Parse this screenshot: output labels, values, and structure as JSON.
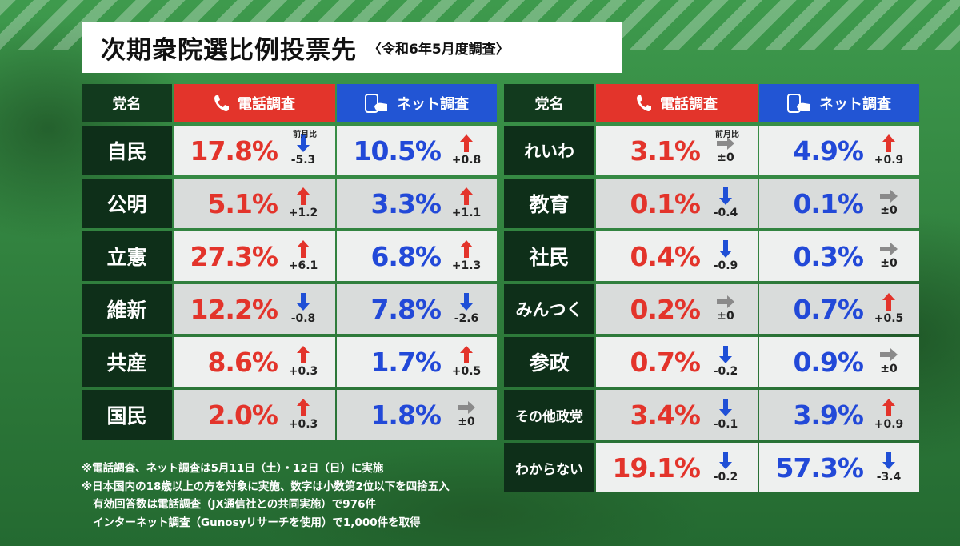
{
  "title": "次期衆院選比例投票先",
  "subtitle": "〈令和6年5月度調査〉",
  "headers": {
    "party": "党名",
    "phone": "電話調査",
    "net": "ネット調査",
    "prev": "前月比"
  },
  "colors": {
    "phone": "#e3342b",
    "net": "#2255d4",
    "party_bg": "#0e2f19",
    "up": "#e3342b",
    "down": "#1f4fd6",
    "flat": "#8a8a8a"
  },
  "icons": {
    "phone": "phone-icon",
    "net": "smartphone-icon",
    "up": "arrow-up-icon",
    "down": "arrow-down-icon",
    "flat": "arrow-right-icon"
  },
  "left_table": [
    {
      "party": "自民",
      "phone": "17.8%",
      "phone_dir": "down",
      "phone_chg": "-5.3",
      "net": "10.5%",
      "net_dir": "up",
      "net_chg": "+0.8"
    },
    {
      "party": "公明",
      "phone": "5.1%",
      "phone_dir": "up",
      "phone_chg": "+1.2",
      "net": "3.3%",
      "net_dir": "up",
      "net_chg": "+1.1"
    },
    {
      "party": "立憲",
      "phone": "27.3%",
      "phone_dir": "up",
      "phone_chg": "+6.1",
      "net": "6.8%",
      "net_dir": "up",
      "net_chg": "+1.3"
    },
    {
      "party": "維新",
      "phone": "12.2%",
      "phone_dir": "down",
      "phone_chg": "-0.8",
      "net": "7.8%",
      "net_dir": "down",
      "net_chg": "-2.6"
    },
    {
      "party": "共産",
      "phone": "8.6%",
      "phone_dir": "up",
      "phone_chg": "+0.3",
      "net": "1.7%",
      "net_dir": "up",
      "net_chg": "+0.5"
    },
    {
      "party": "国民",
      "phone": "2.0%",
      "phone_dir": "up",
      "phone_chg": "+0.3",
      "net": "1.8%",
      "net_dir": "flat",
      "net_chg": "±0"
    }
  ],
  "right_table": [
    {
      "party": "れいわ",
      "phone": "3.1%",
      "phone_dir": "flat",
      "phone_chg": "±0",
      "net": "4.9%",
      "net_dir": "up",
      "net_chg": "+0.9"
    },
    {
      "party": "教育",
      "phone": "0.1%",
      "phone_dir": "down",
      "phone_chg": "-0.4",
      "net": "0.1%",
      "net_dir": "flat",
      "net_chg": "±0"
    },
    {
      "party": "社民",
      "phone": "0.4%",
      "phone_dir": "down",
      "phone_chg": "-0.9",
      "net": "0.3%",
      "net_dir": "flat",
      "net_chg": "±0"
    },
    {
      "party": "みんつく",
      "phone": "0.2%",
      "phone_dir": "flat",
      "phone_chg": "±0",
      "net": "0.7%",
      "net_dir": "up",
      "net_chg": "+0.5"
    },
    {
      "party": "参政",
      "phone": "0.7%",
      "phone_dir": "down",
      "phone_chg": "-0.2",
      "net": "0.9%",
      "net_dir": "flat",
      "net_chg": "±0"
    },
    {
      "party": "その他政党",
      "phone": "3.4%",
      "phone_dir": "down",
      "phone_chg": "-0.1",
      "net": "3.9%",
      "net_dir": "up",
      "net_chg": "+0.9"
    },
    {
      "party": "わからない",
      "phone": "19.1%",
      "phone_dir": "down",
      "phone_chg": "-0.2",
      "net": "57.3%",
      "net_dir": "down",
      "net_chg": "-3.4"
    }
  ],
  "notes": [
    "※電話調査、ネット調査は5月11日（土）・12日（日）に実施",
    "※日本国内の18歳以上の方を対象に実施、数字は小数第2位以下を四捨五入",
    "有効回答数は電話調査（JX通信社との共同実施）で976件",
    "インターネット調査（Gunosyリサーチを使用）で1,000件を取得"
  ]
}
